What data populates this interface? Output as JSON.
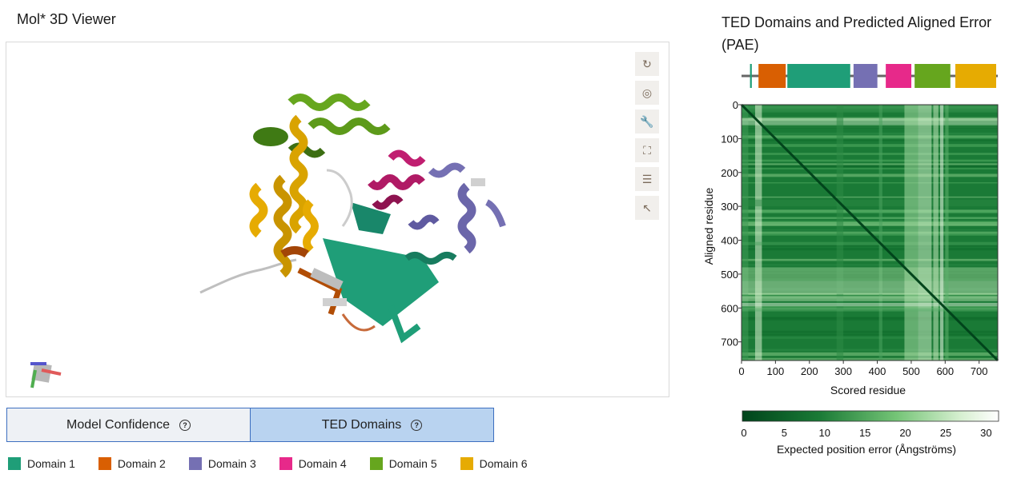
{
  "viewer": {
    "title": "Mol* 3D Viewer",
    "tools": [
      {
        "name": "reset-camera-icon",
        "glyph": "↻"
      },
      {
        "name": "screenshot-icon",
        "glyph": "◎"
      },
      {
        "name": "wrench-icon",
        "glyph": "🔧"
      },
      {
        "name": "fullscreen-icon",
        "glyph": "⛶"
      },
      {
        "name": "settings-sliders-icon",
        "glyph": "☰"
      },
      {
        "name": "select-pointer-icon",
        "glyph": "↖"
      }
    ]
  },
  "tabs": [
    {
      "label": "Model Confidence",
      "active": false
    },
    {
      "label": "TED Domains",
      "active": true
    }
  ],
  "legend": [
    {
      "label": "Domain 1",
      "color": "#1f9e78"
    },
    {
      "label": "Domain 2",
      "color": "#d95f02"
    },
    {
      "label": "Domain 3",
      "color": "#7570b3"
    },
    {
      "label": "Domain 4",
      "color": "#e7298a"
    },
    {
      "label": "Domain 5",
      "color": "#66a61e"
    },
    {
      "label": "Domain 6",
      "color": "#e6ab02"
    }
  ],
  "pae": {
    "title": "TED Domains and Predicted Aligned Error (PAE)",
    "domain_bar": [
      {
        "start": 25,
        "end": 35,
        "color": "#1f9e78"
      },
      {
        "start": 50,
        "end": 135,
        "color": "#d95f02"
      },
      {
        "start": 135,
        "end": 325,
        "color": "#1f9e78"
      },
      {
        "start": 330,
        "end": 405,
        "color": "#7570b3"
      },
      {
        "start": 425,
        "end": 505,
        "color": "#e7298a"
      },
      {
        "start": 510,
        "end": 620,
        "color": "#66a61e"
      },
      {
        "start": 630,
        "end": 755,
        "color": "#e6ab02"
      }
    ],
    "total_residues": 755,
    "y_ticks": [
      "0",
      "100",
      "200",
      "300",
      "400",
      "500",
      "600",
      "700"
    ],
    "x_ticks": [
      "0",
      "100",
      "200",
      "300",
      "400",
      "500",
      "600",
      "700"
    ],
    "xlabel": "Scored residue",
    "ylabel": "Aligned residue",
    "colorbar_ticks": [
      "0",
      "5",
      "10",
      "15",
      "20",
      "25",
      "30"
    ],
    "colorbar_label": "Expected position error (Ångströms)",
    "colorbar_range": [
      0,
      31.75
    ]
  }
}
